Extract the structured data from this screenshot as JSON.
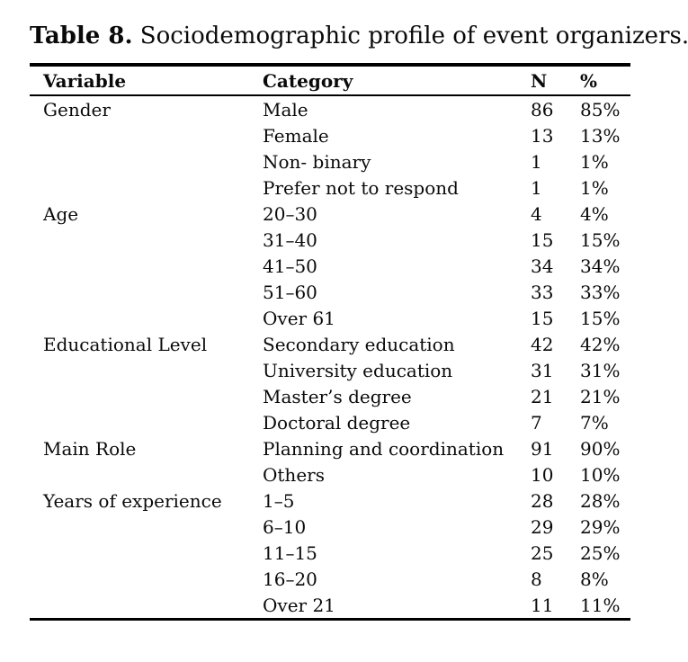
{
  "caption": {
    "label": "Table 8.",
    "text": "Sociodemographic profile of event organizers."
  },
  "table": {
    "columns": [
      "Variable",
      "Category",
      "N",
      "%"
    ],
    "rows": [
      {
        "variable": "Gender",
        "category": "Male",
        "n": "86",
        "pct": "85%"
      },
      {
        "variable": "",
        "category": "Female",
        "n": "13",
        "pct": "13%"
      },
      {
        "variable": "",
        "category": "Non- binary",
        "n": "1",
        "pct": "1%"
      },
      {
        "variable": "",
        "category": "Prefer not to respond",
        "n": "1",
        "pct": "1%"
      },
      {
        "variable": "Age",
        "category": "20–30",
        "n": "4",
        "pct": "4%"
      },
      {
        "variable": "",
        "category": "31–40",
        "n": "15",
        "pct": "15%"
      },
      {
        "variable": "",
        "category": "41–50",
        "n": "34",
        "pct": "34%"
      },
      {
        "variable": "",
        "category": "51–60",
        "n": "33",
        "pct": "33%"
      },
      {
        "variable": "",
        "category": "Over 61",
        "n": "15",
        "pct": "15%"
      },
      {
        "variable": "Educational Level",
        "category": "Secondary education",
        "n": "42",
        "pct": "42%"
      },
      {
        "variable": "",
        "category": "University education",
        "n": "31",
        "pct": "31%"
      },
      {
        "variable": "",
        "category": "Master’s degree",
        "n": "21",
        "pct": "21%"
      },
      {
        "variable": "",
        "category": "Doctoral degree",
        "n": "7",
        "pct": "7%"
      },
      {
        "variable": "Main Role",
        "category": "Planning and coordination",
        "n": "91",
        "pct": "90%"
      },
      {
        "variable": "",
        "category": "Others",
        "n": "10",
        "pct": "10%"
      },
      {
        "variable": "Years of experience",
        "category": "1–5",
        "n": "28",
        "pct": "28%"
      },
      {
        "variable": "",
        "category": "6–10",
        "n": "29",
        "pct": "29%"
      },
      {
        "variable": "",
        "category": "11–15",
        "n": "25",
        "pct": "25%"
      },
      {
        "variable": "",
        "category": "16–20",
        "n": "8",
        "pct": "8%"
      },
      {
        "variable": "",
        "category": "Over 21",
        "n": "11",
        "pct": "11%"
      }
    ]
  }
}
